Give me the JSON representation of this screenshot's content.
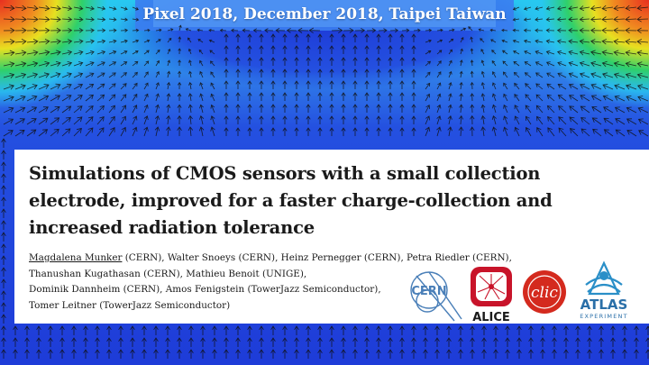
{
  "header": {
    "conference": "Pixel 2018, December 2018, Taipei Taiwan"
  },
  "slide": {
    "title_lines": [
      "Simulations of CMOS sensors with a small collection",
      "electrode, improved for a faster charge-collection and",
      "increased radiation tolerance"
    ],
    "presenter": "Magdalena Munker",
    "author_lines": [
      " (CERN), Walter Snoeys (CERN), Heinz Pernegger (CERN), Petra Riedler (CERN),",
      "Thanushan Kugathasan (CERN), Mathieu Benoit (UNIGE),",
      "Dominik Dannheim (CERN), Amos Fenigstein (TowerJazz Semiconductor),",
      "Tomer Leitner (TowerJazz Semiconductor)"
    ]
  },
  "logos": {
    "cern": "CERN",
    "alice": "ALICE",
    "clic": "clic",
    "atlas": "ATLAS",
    "atlas_sub": "EXPERIMENT"
  },
  "colors": {
    "field_blue": "#1e3cd8",
    "field_green": "#2fd06a",
    "field_yellow": "#e8e020",
    "field_red": "#e83020",
    "alice_red": "#c8142a",
    "clic_red": "#d42a1e",
    "atlas_blue": "#2a8fc8"
  }
}
